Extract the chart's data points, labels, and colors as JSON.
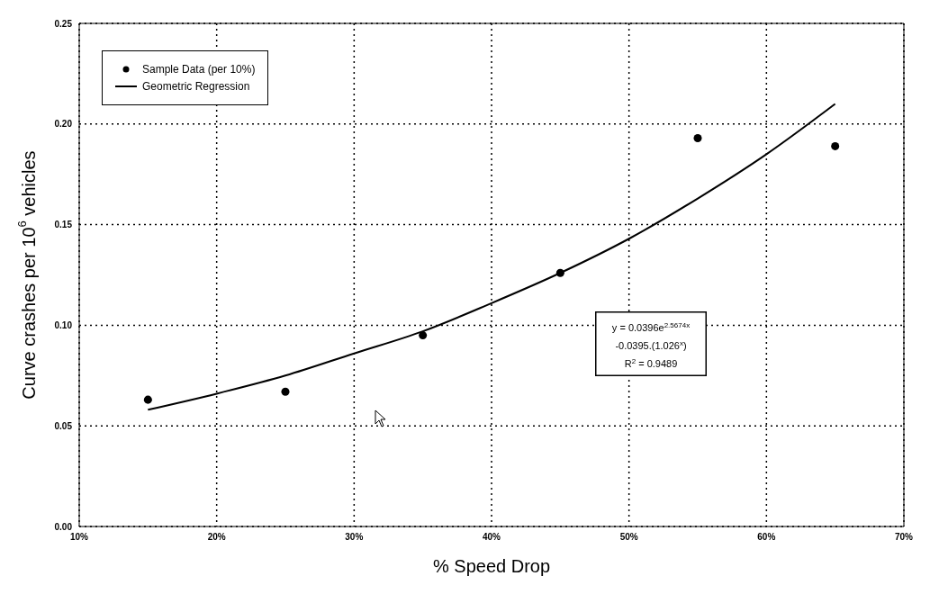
{
  "chart_data": {
    "type": "scatter",
    "xlabel": "% Speed Drop",
    "ylabel": "Curve crashes per 10$^{6}$ vehicles",
    "xlim": [
      10,
      70
    ],
    "xticks": [
      {
        "value": 10,
        "label": "10%"
      },
      {
        "value": 20,
        "label": "20%"
      },
      {
        "value": 30,
        "label": "30%"
      },
      {
        "value": 40,
        "label": "40%"
      },
      {
        "value": 50,
        "label": "50%"
      },
      {
        "value": 60,
        "label": "60%"
      },
      {
        "value": 70,
        "label": "70%"
      }
    ],
    "ylim": [
      0,
      0.25
    ],
    "yticks": [
      {
        "value": 0,
        "label": "0.00"
      },
      {
        "value": 0.05,
        "label": "0.05"
      },
      {
        "value": 0.1,
        "label": "0.10"
      },
      {
        "value": 0.15,
        "label": "0.15"
      },
      {
        "value": 0.2,
        "label": "0.20"
      },
      {
        "value": 0.25,
        "label": "0.25"
      }
    ],
    "grid": true,
    "legend": "top left",
    "series": [
      {
        "name": "Sample Data (per 10%)",
        "marker": "circle",
        "color": "#000000",
        "x": [
          15,
          25,
          35,
          45,
          55,
          65
        ],
        "values": [
          0.063,
          0.067,
          0.095,
          0.126,
          0.193,
          0.189
        ]
      },
      {
        "name": "Geometric Regression",
        "type": "line",
        "marker": "none",
        "line_style": "solid",
        "color": "#000000",
        "x": [
          15,
          20,
          25,
          30,
          35,
          40,
          45,
          50,
          55,
          60,
          65
        ],
        "values": [
          0.058,
          0.066,
          0.075,
          0.086,
          0.097,
          0.111,
          0.126,
          0.143,
          0.163,
          0.185,
          0.21
        ]
      }
    ],
    "annotations": [
      "y = 0.0396e$^{2.5674x}$",
      "-0.0395.(1.026$^{x}$)",
      "R$^{2}$ = 0.9489"
    ]
  }
}
